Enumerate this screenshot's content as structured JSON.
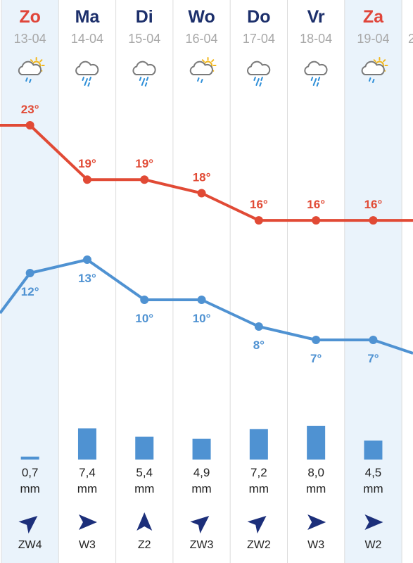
{
  "colors": {
    "weekend_text": "#e0453a",
    "weekday_text": "#1c2f6b",
    "weekend_bg": "#eaf3fb",
    "high_line": "#e14a35",
    "low_line": "#4f92d2",
    "rain_bar": "#4f92d2",
    "wind_arrow": "#1c2f7a",
    "divider": "#dddddd"
  },
  "chart_data": {
    "type": "line",
    "categories": [
      "Zo",
      "Ma",
      "Di",
      "Wo",
      "Do",
      "Vr",
      "Za"
    ],
    "days": [
      {
        "name": "Zo",
        "date": "13-04",
        "weekend": true,
        "icon": "sun-cloud-rain-icon",
        "high": 23,
        "high_label": "23°",
        "low": 12,
        "low_label": "12°",
        "rain": "0,7",
        "rain_value": 0.7,
        "rain_unit": "mm",
        "wind_dir": "ZW",
        "wind_label": "ZW4"
      },
      {
        "name": "Ma",
        "date": "14-04",
        "weekend": false,
        "icon": "cloud-rain-icon",
        "high": 19,
        "high_label": "19°",
        "low": 13,
        "low_label": "13°",
        "rain": "7,4",
        "rain_value": 7.4,
        "rain_unit": "mm",
        "wind_dir": "W",
        "wind_label": "W3"
      },
      {
        "name": "Di",
        "date": "15-04",
        "weekend": false,
        "icon": "cloud-rain-icon",
        "high": 19,
        "high_label": "19°",
        "low": 10,
        "low_label": "10°",
        "rain": "5,4",
        "rain_value": 5.4,
        "rain_unit": "mm",
        "wind_dir": "Z",
        "wind_label": "Z2"
      },
      {
        "name": "Wo",
        "date": "16-04",
        "weekend": false,
        "icon": "sun-cloud-rain-icon",
        "high": 18,
        "high_label": "18°",
        "low": 10,
        "low_label": "10°",
        "rain": "4,9",
        "rain_value": 4.9,
        "rain_unit": "mm",
        "wind_dir": "ZW",
        "wind_label": "ZW3"
      },
      {
        "name": "Do",
        "date": "17-04",
        "weekend": false,
        "icon": "cloud-rain-icon",
        "high": 16,
        "high_label": "16°",
        "low": 8,
        "low_label": "8°",
        "rain": "7,2",
        "rain_value": 7.2,
        "rain_unit": "mm",
        "wind_dir": "ZW",
        "wind_label": "ZW2"
      },
      {
        "name": "Vr",
        "date": "18-04",
        "weekend": false,
        "icon": "cloud-rain-icon",
        "high": 16,
        "high_label": "16°",
        "low": 7,
        "low_label": "7°",
        "rain": "8,0",
        "rain_value": 8.0,
        "rain_unit": "mm",
        "wind_dir": "W",
        "wind_label": "W3"
      },
      {
        "name": "Za",
        "date": "19-04",
        "weekend": true,
        "icon": "sun-cloud-rain-icon",
        "high": 16,
        "high_label": "16°",
        "low": 7,
        "low_label": "7°",
        "rain": "4,5",
        "rain_value": 4.5,
        "rain_unit": "mm",
        "wind_dir": "W",
        "wind_label": "W2"
      }
    ],
    "high_edge": {
      "left": 23,
      "right": 16
    },
    "low_edge": {
      "left": 9,
      "right": 6
    },
    "next_date_partial": "2",
    "ylim": [
      5,
      25
    ]
  }
}
